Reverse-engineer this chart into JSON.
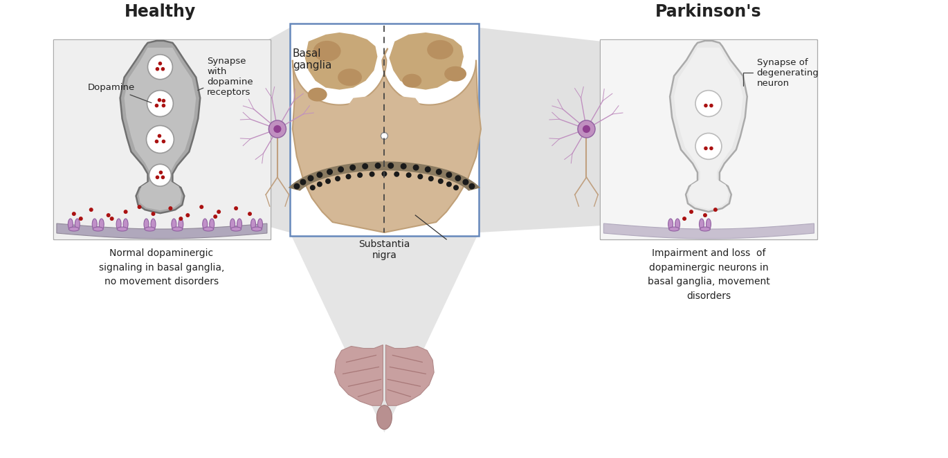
{
  "title_healthy": "Healthy",
  "title_parkinsons": "Parkinson's",
  "label_basal_ganglia": "Basal\nganglia",
  "label_substantia_nigra": "Substantia\nnigra",
  "label_dopamine": "Dopamine",
  "label_synapse_healthy": "Synapse\nwith\ndopamine\nreceptors",
  "label_synapse_park": "Synapse of\ndegenerating\nneuron",
  "caption_healthy": "Normal dopaminergic\nsignaling in basal ganglia,\nno movement disorders",
  "caption_parkinsons": "Impairment and loss  of\ndopaminergic neurons in\nbasal ganglia, movement\ndisorders",
  "bg_color": "#ffffff",
  "gray_neuron_fill": "#a8a8a8",
  "gray_neuron_stroke": "#707070",
  "white_neuron_fill": "#e8e8e8",
  "white_neuron_stroke": "#aaaaaa",
  "receptor_color": "#c090c8",
  "receptor_stroke": "#9060a0",
  "dopamine_dot_color": "#aa1111",
  "brain_color": "#c8a0a0",
  "basal_ganglia_fill": "#d4b896",
  "basal_ganglia_inner": "#c8a878",
  "basal_ganglia_dark": "#b89060",
  "nigra_fill": "#8a7a60",
  "nigra_dots": "#1a1a1a",
  "shadow_gray": "#d5d5d5",
  "box_border_healthy": "#aaaaaa",
  "box_border_park": "#6688bb",
  "font_color": "#222222",
  "dendrite_color": "#c090c0",
  "axon_color": "#c0a080",
  "neuron_soma_fill": "#c090c0",
  "neuron_soma_stroke": "#9060a0",
  "membrane_fill": "#b0a8bc",
  "membrane_park_fill": "#c8c0d0"
}
